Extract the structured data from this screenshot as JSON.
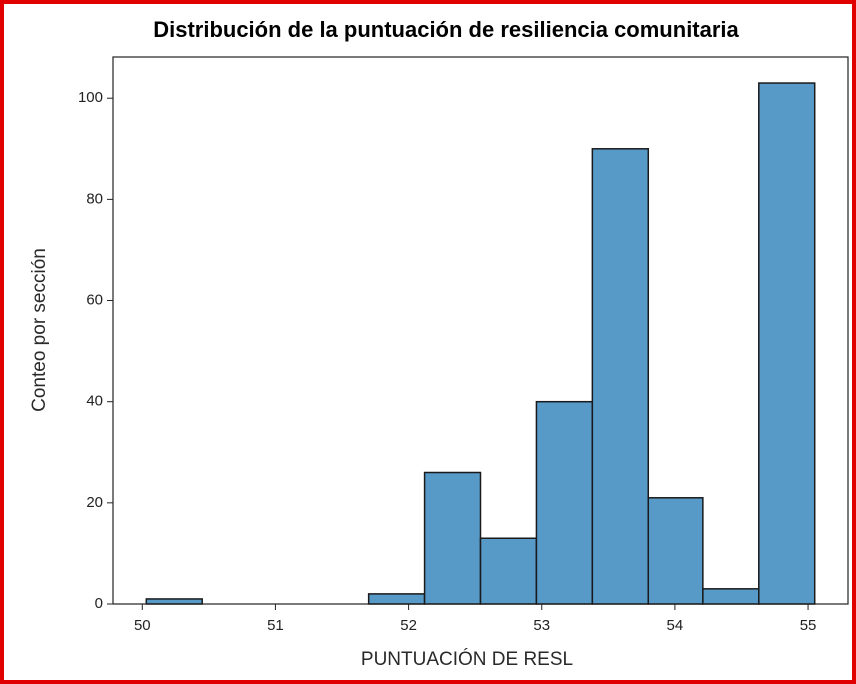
{
  "chart_data": {
    "type": "histogram",
    "title": "Distribución de la puntuación de resiliencia comunitaria",
    "xlabel": "PUNTUACIÓN DE RESL",
    "ylabel": "Conteo por sección",
    "bins": [
      50.03,
      50.45,
      50.87,
      51.28,
      51.7,
      52.12,
      52.54,
      52.96,
      53.38,
      53.8,
      54.21,
      54.63,
      55.05
    ],
    "counts": [
      1,
      0,
      0,
      0,
      2,
      26,
      13,
      40,
      90,
      21,
      3,
      103
    ],
    "color": "#5799c7",
    "edgecolor": "#1a1a1a",
    "xlim": [
      49.78,
      55.3
    ],
    "ylim": [
      0,
      108.15
    ],
    "xticks": [
      50,
      51,
      52,
      53,
      54,
      55
    ],
    "yticks": [
      0,
      20,
      40,
      60,
      80,
      100
    ],
    "grid": false
  }
}
